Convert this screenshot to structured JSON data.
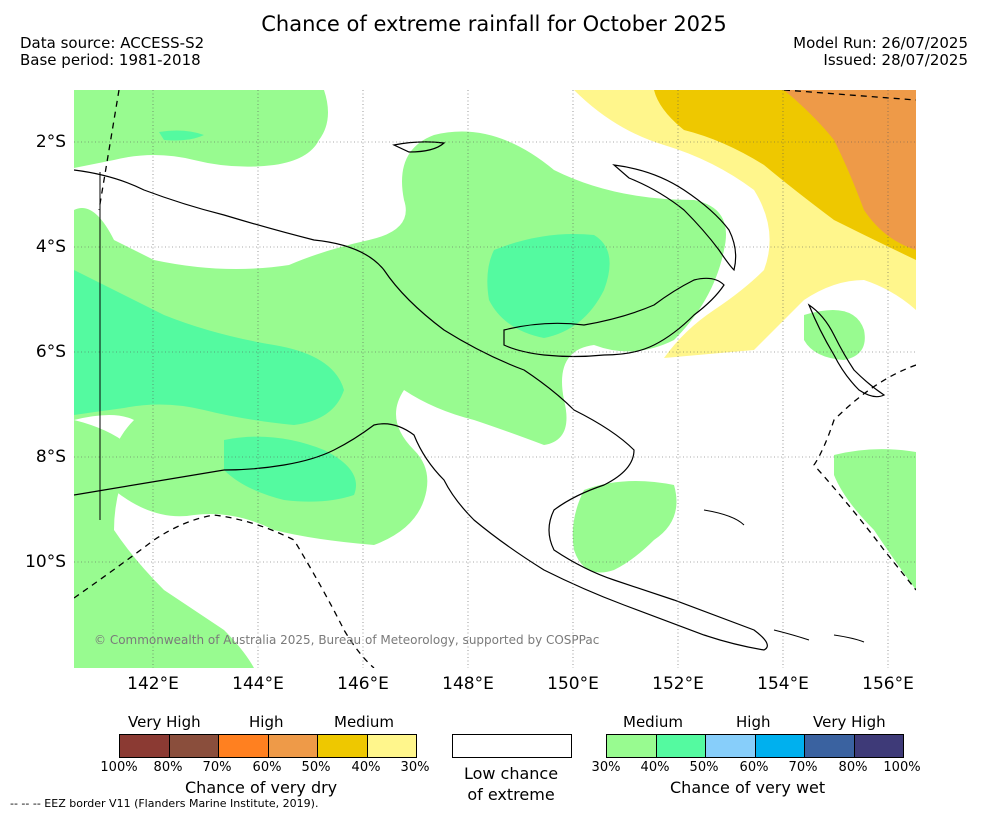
{
  "title": "Chance of extreme rainfall for October 2025",
  "data_source": "Data source: ACCESS-S2",
  "base_period": "Base period: 1981-2018",
  "model_run": "Model Run: 26/07/2025",
  "issued": "Issued: 28/07/2025",
  "map": {
    "lat_ticks": [
      "2°S",
      "4°S",
      "6°S",
      "8°S",
      "10°S"
    ],
    "lon_ticks": [
      "142°E",
      "144°E",
      "146°E",
      "148°E",
      "150°E",
      "152°E",
      "154°E",
      "156°E"
    ],
    "credit": "© Commonwealth of Australia 2025, Bureau of Meteorology, supported by COSPPac",
    "eez_note": "-- -- -- EEZ border V11 (Flanders Marine Institute, 2019)."
  },
  "legend": {
    "dry": {
      "levels": [
        "Very High",
        "High",
        "Medium"
      ],
      "colors": [
        "#8B3A33",
        "#8A4E3C",
        "#FF8020",
        "#EE9A48",
        "#EEC800",
        "#FFF68C"
      ],
      "ticks": [
        "100%",
        "80%",
        "70%",
        "60%",
        "50%",
        "40%",
        "30%"
      ],
      "title": "Chance of very dry"
    },
    "low": {
      "line1": "Low chance",
      "line2": "of extreme"
    },
    "wet": {
      "levels": [
        "Medium",
        "High",
        "Very High"
      ],
      "colors": [
        "#98FB90",
        "#54FAA0",
        "#87CEFA",
        "#00B0EE",
        "#3A62A0",
        "#3E3A78"
      ],
      "ticks": [
        "30%",
        "40%",
        "50%",
        "60%",
        "70%",
        "80%",
        "100%"
      ],
      "title": "Chance of very wet"
    }
  }
}
